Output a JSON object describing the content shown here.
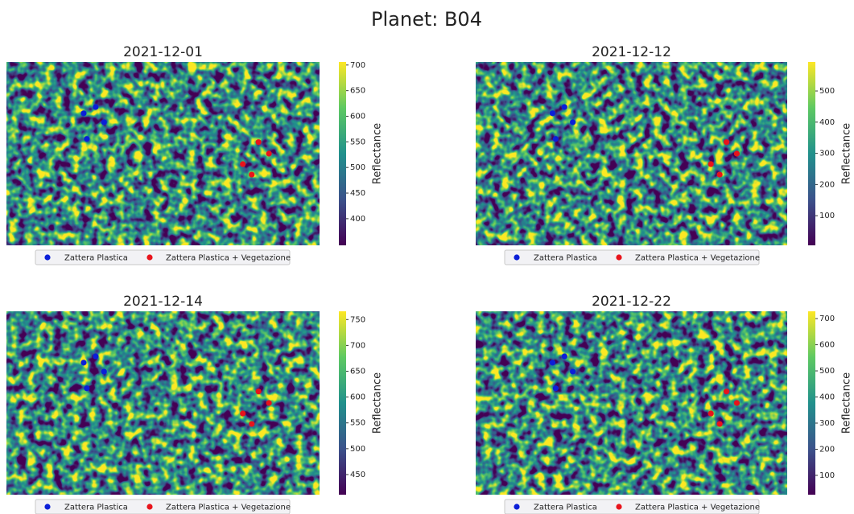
{
  "title": "Planet: B04",
  "chart_data": [
    {
      "type": "scatter",
      "title": "2021-12-01",
      "colorbar_label": "Reflectance",
      "clim": [
        348,
        706
      ],
      "cticks": [
        400,
        450,
        500,
        550,
        600,
        650,
        700
      ],
      "xlim": [
        0,
        60
      ],
      "ylim": [
        35,
        0
      ],
      "series": [
        {
          "name": "Zattera Plastica",
          "color": "#0b1fd8",
          "x": [
            14.8,
            17.1,
            18.7,
            15.4
          ],
          "y": [
            9.8,
            8.6,
            11.5,
            14.7
          ]
        },
        {
          "name": "Zattera Plastica + Vegetazione",
          "color": "#e8141c",
          "x": [
            48.3,
            50.3,
            45.3,
            47.0
          ],
          "y": [
            15.3,
            17.5,
            19.5,
            21.5
          ]
        }
      ]
    },
    {
      "type": "scatter",
      "title": "2021-12-12",
      "colorbar_label": "Reflectance",
      "clim": [
        5,
        593
      ],
      "cticks": [
        100,
        200,
        300,
        400,
        500
      ],
      "xlim": [
        0,
        60
      ],
      "ylim": [
        35,
        0
      ],
      "series": [
        {
          "name": "Zattera Plastica",
          "color": "#0b1fd8",
          "x": [
            14.8,
            17.1,
            18.7,
            15.4
          ],
          "y": [
            9.8,
            8.6,
            11.5,
            14.7
          ]
        },
        {
          "name": "Zattera Plastica + Vegetazione",
          "color": "#e8141c",
          "x": [
            48.3,
            50.3,
            45.3,
            47.0
          ],
          "y": [
            15.3,
            17.5,
            19.5,
            21.5
          ]
        }
      ]
    },
    {
      "type": "scatter",
      "title": "2021-12-14",
      "colorbar_label": "Reflectance",
      "clim": [
        411,
        766
      ],
      "cticks": [
        450,
        500,
        550,
        600,
        650,
        700,
        750
      ],
      "xlim": [
        0,
        60
      ],
      "ylim": [
        35,
        0
      ],
      "series": [
        {
          "name": "Zattera Plastica",
          "color": "#0b1fd8",
          "x": [
            14.8,
            17.1,
            18.7,
            15.4
          ],
          "y": [
            9.8,
            8.6,
            11.5,
            14.7
          ]
        },
        {
          "name": "Zattera Plastica + Vegetazione",
          "color": "#e8141c",
          "x": [
            48.3,
            50.3,
            45.3,
            47.0
          ],
          "y": [
            15.3,
            17.5,
            19.5,
            21.5
          ]
        }
      ]
    },
    {
      "type": "scatter",
      "title": "2021-12-22",
      "colorbar_label": "Reflectance",
      "clim": [
        26,
        728
      ],
      "cticks": [
        100,
        200,
        300,
        400,
        500,
        600,
        700
      ],
      "xlim": [
        0,
        60
      ],
      "ylim": [
        35,
        0
      ],
      "series": [
        {
          "name": "Zattera Plastica",
          "color": "#0b1fd8",
          "x": [
            14.8,
            17.1,
            18.7,
            15.4
          ],
          "y": [
            9.8,
            8.6,
            11.5,
            14.7
          ]
        },
        {
          "name": "Zattera Plastica + Vegetazione",
          "color": "#e8141c",
          "x": [
            48.3,
            50.3,
            45.3,
            47.0
          ],
          "y": [
            15.3,
            17.5,
            19.5,
            21.5
          ]
        }
      ]
    }
  ]
}
